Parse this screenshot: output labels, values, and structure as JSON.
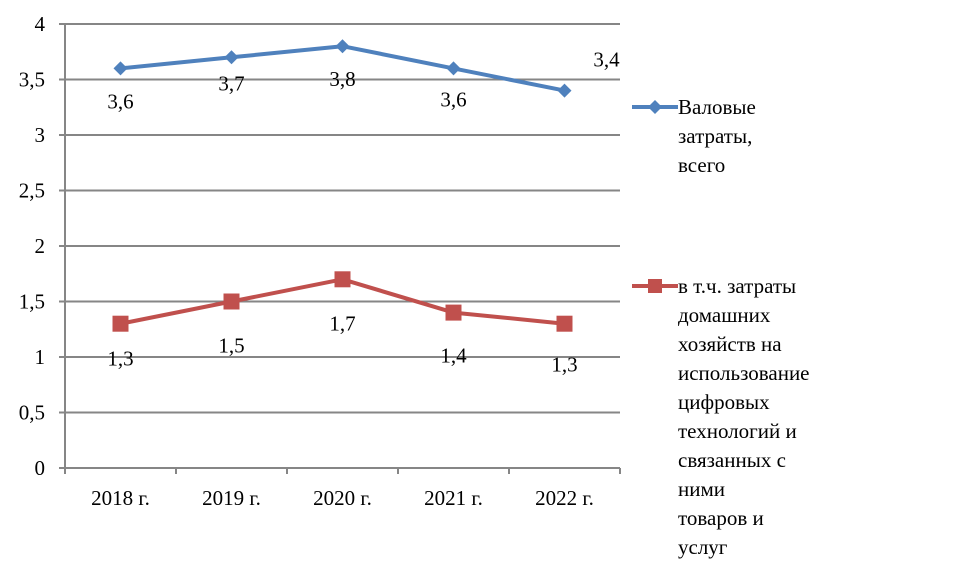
{
  "chart_data": {
    "type": "line",
    "title": "",
    "xlabel": "",
    "ylabel": "",
    "categories": [
      "2018 г.",
      "2019 г.",
      "2020 г.",
      "2021 г.",
      "2022 г."
    ],
    "ylim": [
      0,
      4
    ],
    "yticks": [
      0,
      0.5,
      1,
      1.5,
      2,
      2.5,
      3,
      3.5,
      4
    ],
    "ytick_labels": [
      "0",
      "0,5",
      "1",
      "1,5",
      "2",
      "2,5",
      "3",
      "3,5",
      "4"
    ],
    "grid": true,
    "legend_position": "right",
    "series": [
      {
        "name": "Валовые затраты, всего",
        "values": [
          3.6,
          3.7,
          3.8,
          3.6,
          3.4
        ],
        "data_labels": [
          "3,6",
          "3,7",
          "3,8",
          "3,6",
          "3,4"
        ],
        "color": "#4F81BD",
        "marker": "diamond"
      },
      {
        "name": "в т.ч. затраты домашних хозяйств на использование цифровых технологий и связанных с ними товаров и услуг",
        "values": [
          1.3,
          1.5,
          1.7,
          1.4,
          1.3
        ],
        "data_labels": [
          "1,3",
          "1,5",
          "1,7",
          "1,4",
          "1,3"
        ],
        "color": "#C0504D",
        "marker": "square"
      }
    ]
  },
  "legend": {
    "items": [
      {
        "label": "Валовые затраты, всего"
      },
      {
        "label": "в т.ч. затраты домашних\nхозяйств на\nиспользование\nцифровых технологий и\nсвязанных с ними\nтоваров и услуг"
      }
    ]
  }
}
